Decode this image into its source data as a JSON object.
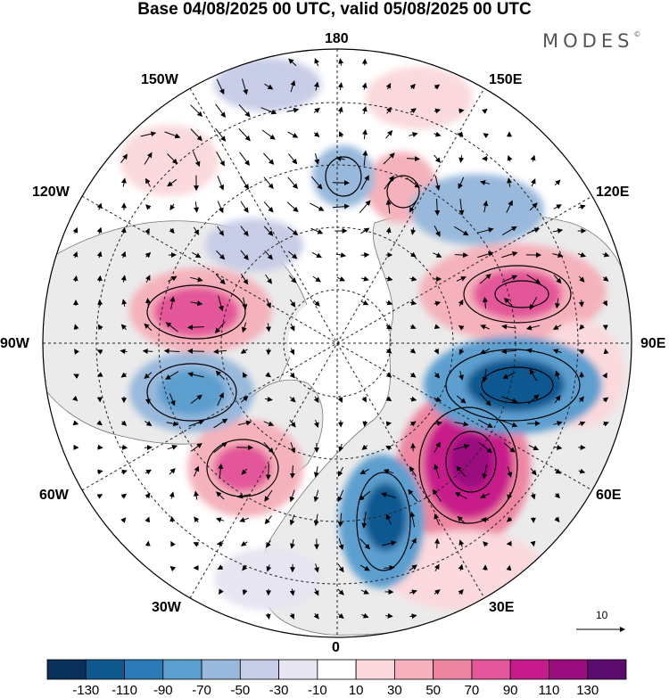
{
  "title": "Base 04/08/2025 00 UTC, valid 05/08/2025 00 UTC",
  "brand": {
    "text": "MODES",
    "mark": "©"
  },
  "map": {
    "projection": "north-polar-stereographic",
    "longitude_labels": {
      "n": "180",
      "s": "0",
      "w": "90W",
      "e": "90E",
      "nw1": "150W",
      "nw2": "120W",
      "ne1": "150E",
      "ne2": "120E",
      "sw1": "60W",
      "sw2": "30W",
      "se1": "60E",
      "se2": "30E"
    },
    "fill_icon": "anomaly-field-shading",
    "vector_icon": "wind-arrow-icon"
  },
  "reference_vector": {
    "value": "10"
  },
  "colorbar": {
    "colors": [
      "#08305a",
      "#0e5890",
      "#2c7bb6",
      "#5b9fcf",
      "#98b9dc",
      "#c7cde6",
      "#e6e5f1",
      "#ffffff",
      "#fbd9dc",
      "#f5b2bc",
      "#ee86a2",
      "#e4579a",
      "#c81b8b",
      "#9a0d7f",
      "#5c0c6e"
    ],
    "labels": [
      "-130",
      "-110",
      "-90",
      "-70",
      "-50",
      "-30",
      "-10",
      "10",
      "30",
      "50",
      "70",
      "90",
      "110",
      "130"
    ]
  }
}
